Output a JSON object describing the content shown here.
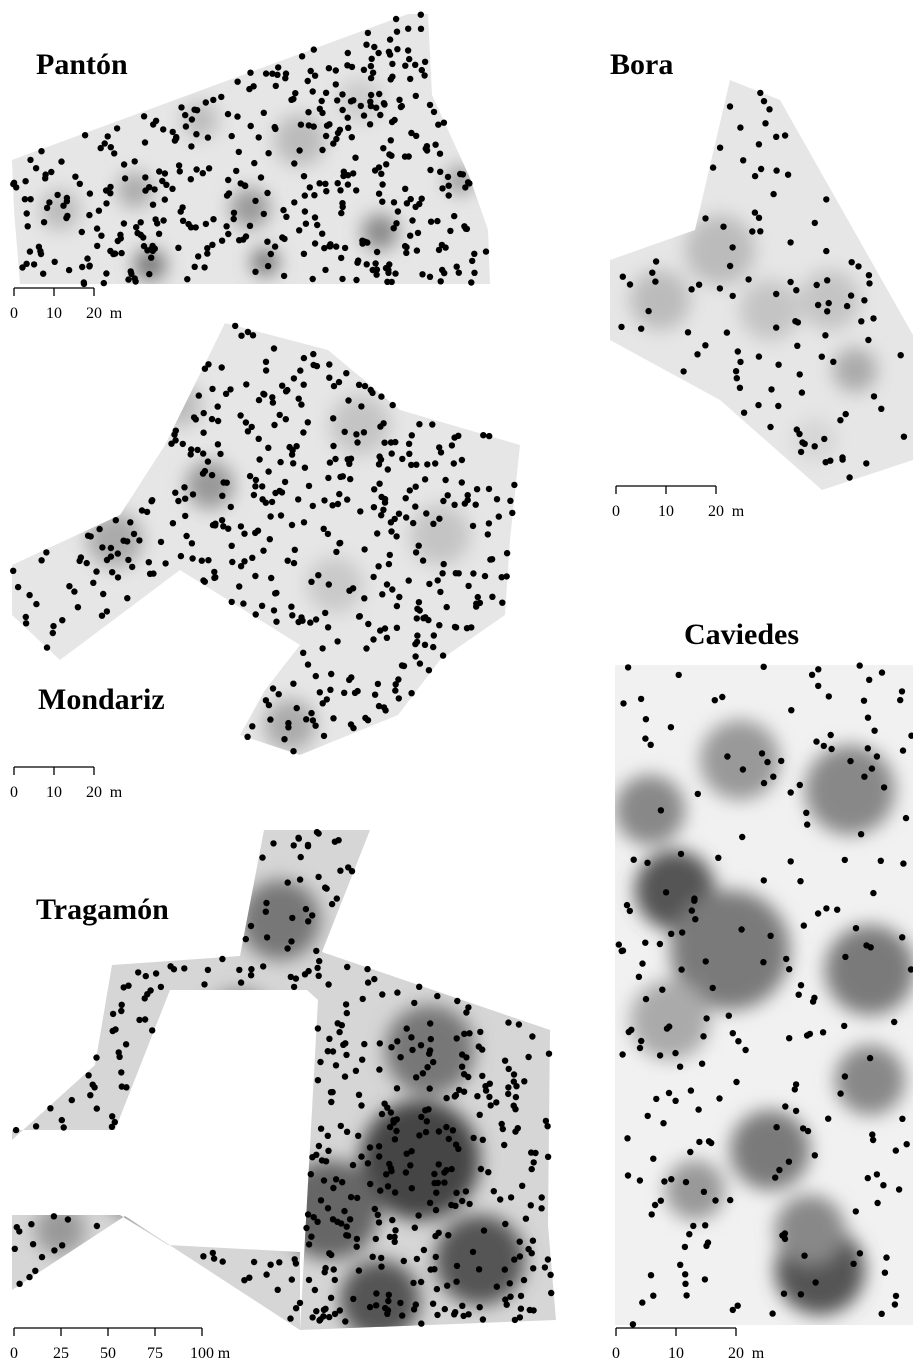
{
  "colors": {
    "point": "#000000",
    "shade_light": "#e6e6e6",
    "shade_mid": "#c9c9c9",
    "shade_dark": "#8f8f8f",
    "outline": "#000000"
  },
  "plots": [
    {
      "id": "panton",
      "name": "Pantón",
      "scale": {
        "ticks": [
          "0",
          "10",
          "20"
        ],
        "unit": "m"
      }
    },
    {
      "id": "bora",
      "name": "Bora",
      "scale": {
        "ticks": [
          "0",
          "10",
          "20"
        ],
        "unit": "m"
      }
    },
    {
      "id": "mondariz",
      "name": "Mondariz",
      "scale": {
        "ticks": [
          "0",
          "10",
          "20"
        ],
        "unit": "m"
      }
    },
    {
      "id": "caviedes",
      "name": "Caviedes",
      "scale": {
        "ticks": [
          "0",
          "10",
          "20"
        ],
        "unit": "m"
      }
    },
    {
      "id": "tragamon",
      "name": "Tragamón",
      "scale": {
        "ticks": [
          "0",
          "25",
          "50",
          "75",
          "100"
        ],
        "unit": "m"
      }
    }
  ]
}
